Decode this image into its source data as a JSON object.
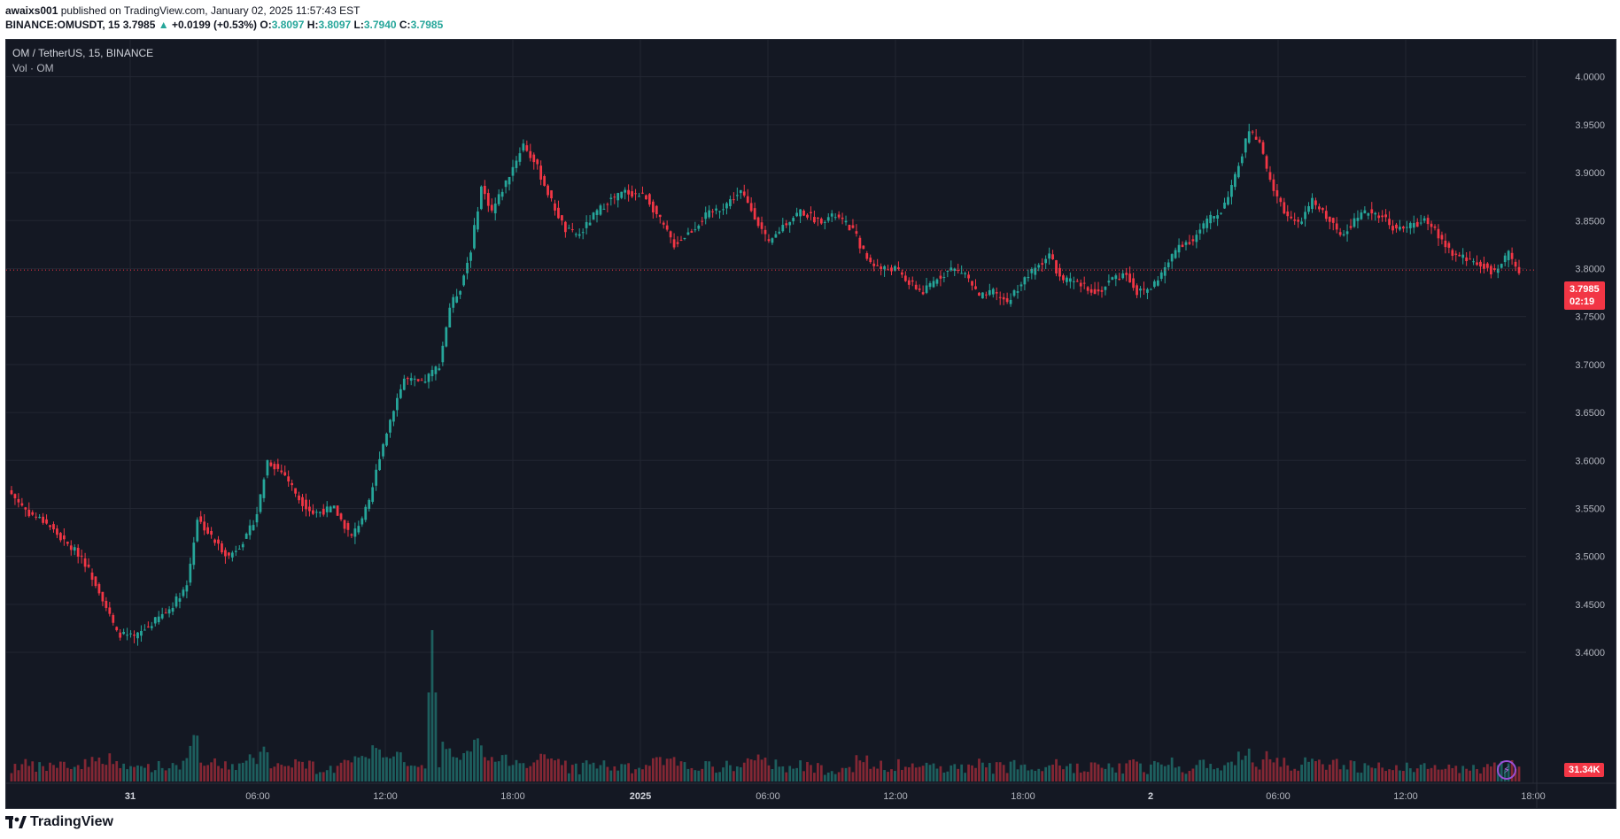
{
  "header": {
    "user": "awaixs001",
    "published": " published on TradingView.com, January 02, 2025 11:57:43 EST",
    "symbol_line": "BINANCE:OMUSDT, 15",
    "last": "3.7985",
    "change": "+0.0199 (+0.53%)",
    "o_label": "O:",
    "o": "3.8097",
    "h_label": "H:",
    "h": "3.8097",
    "l_label": "L:",
    "l": "3.7940",
    "c_label": "C:",
    "c": "3.7985"
  },
  "legend": {
    "symbol": "OM / TetherUS, 15, BINANCE",
    "volume": "Vol · OM"
  },
  "price_badge": {
    "price": "3.7985",
    "countdown": "02:19"
  },
  "volume_badge": "31.34K",
  "footer": {
    "brand": "TradingView"
  },
  "colors": {
    "up": "#26a69a",
    "down": "#f23645",
    "background": "#141823",
    "grid": "#222632",
    "text": "#b2b5be"
  },
  "icons": {
    "alert": "lightning-bolt-icon",
    "logo": "tradingview-logo-icon"
  },
  "chart_data": {
    "type": "candlestick",
    "title": "OM / TetherUS, 15, BINANCE",
    "y_axis": {
      "ticks": [
        "4.0000",
        "3.9500",
        "3.9000",
        "3.8500",
        "3.8000",
        "3.7500",
        "3.7000",
        "3.6500",
        "3.6000",
        "3.5500",
        "3.5000",
        "3.4500",
        "3.4000"
      ],
      "range": [
        3.365,
        4.02
      ]
    },
    "x_axis": {
      "ticks": [
        "31",
        "06:00",
        "12:00",
        "18:00",
        "2025",
        "06:00",
        "12:00",
        "18:00",
        "2",
        "06:00",
        "12:00",
        "18:00"
      ]
    },
    "last_price": 3.7985,
    "close_path": [
      [
        0,
        3.565
      ],
      [
        5,
        3.545
      ],
      [
        10,
        3.535
      ],
      [
        15,
        3.515
      ],
      [
        20,
        3.5
      ],
      [
        25,
        3.465
      ],
      [
        30,
        3.42
      ],
      [
        35,
        3.415
      ],
      [
        40,
        3.43
      ],
      [
        45,
        3.445
      ],
      [
        50,
        3.47
      ],
      [
        53,
        3.54
      ],
      [
        58,
        3.515
      ],
      [
        62,
        3.5
      ],
      [
        67,
        3.52
      ],
      [
        70,
        3.545
      ],
      [
        73,
        3.6
      ],
      [
        78,
        3.585
      ],
      [
        82,
        3.56
      ],
      [
        86,
        3.545
      ],
      [
        92,
        3.55
      ],
      [
        97,
        3.52
      ],
      [
        102,
        3.555
      ],
      [
        105,
        3.605
      ],
      [
        109,
        3.655
      ],
      [
        112,
        3.685
      ],
      [
        117,
        3.68
      ],
      [
        122,
        3.7
      ],
      [
        125,
        3.76
      ],
      [
        128,
        3.78
      ],
      [
        131,
        3.82
      ],
      [
        134,
        3.885
      ],
      [
        137,
        3.86
      ],
      [
        141,
        3.89
      ],
      [
        146,
        3.93
      ],
      [
        150,
        3.905
      ],
      [
        154,
        3.87
      ],
      [
        158,
        3.84
      ],
      [
        162,
        3.835
      ],
      [
        166,
        3.855
      ],
      [
        170,
        3.87
      ],
      [
        175,
        3.88
      ],
      [
        181,
        3.875
      ],
      [
        185,
        3.85
      ],
      [
        189,
        3.825
      ],
      [
        194,
        3.84
      ],
      [
        198,
        3.855
      ],
      [
        203,
        3.865
      ],
      [
        208,
        3.88
      ],
      [
        212,
        3.855
      ],
      [
        216,
        3.825
      ],
      [
        220,
        3.845
      ],
      [
        225,
        3.86
      ],
      [
        230,
        3.85
      ],
      [
        235,
        3.855
      ],
      [
        240,
        3.84
      ],
      [
        244,
        3.81
      ],
      [
        248,
        3.8
      ],
      [
        252,
        3.8
      ],
      [
        256,
        3.785
      ],
      [
        260,
        3.775
      ],
      [
        264,
        3.79
      ],
      [
        268,
        3.8
      ],
      [
        272,
        3.795
      ],
      [
        276,
        3.77
      ],
      [
        280,
        3.775
      ],
      [
        284,
        3.765
      ],
      [
        288,
        3.785
      ],
      [
        292,
        3.8
      ],
      [
        296,
        3.815
      ],
      [
        299,
        3.79
      ],
      [
        303,
        3.785
      ],
      [
        307,
        3.78
      ],
      [
        310,
        3.775
      ],
      [
        314,
        3.79
      ],
      [
        318,
        3.795
      ],
      [
        321,
        3.775
      ],
      [
        325,
        3.78
      ],
      [
        329,
        3.8
      ],
      [
        333,
        3.825
      ],
      [
        337,
        3.83
      ],
      [
        341,
        3.85
      ],
      [
        345,
        3.86
      ],
      [
        349,
        3.895
      ],
      [
        353,
        3.945
      ],
      [
        356,
        3.93
      ],
      [
        359,
        3.89
      ],
      [
        363,
        3.86
      ],
      [
        367,
        3.845
      ],
      [
        371,
        3.87
      ],
      [
        375,
        3.855
      ],
      [
        379,
        3.835
      ],
      [
        383,
        3.85
      ],
      [
        387,
        3.86
      ],
      [
        391,
        3.855
      ],
      [
        395,
        3.84
      ],
      [
        399,
        3.845
      ],
      [
        403,
        3.85
      ],
      [
        407,
        3.835
      ],
      [
        411,
        3.815
      ],
      [
        415,
        3.81
      ],
      [
        419,
        3.805
      ],
      [
        423,
        3.795
      ],
      [
        427,
        3.815
      ],
      [
        430,
        3.7985
      ]
    ],
    "volume_spike": {
      "peak": 31.34,
      "unit": "K"
    }
  }
}
